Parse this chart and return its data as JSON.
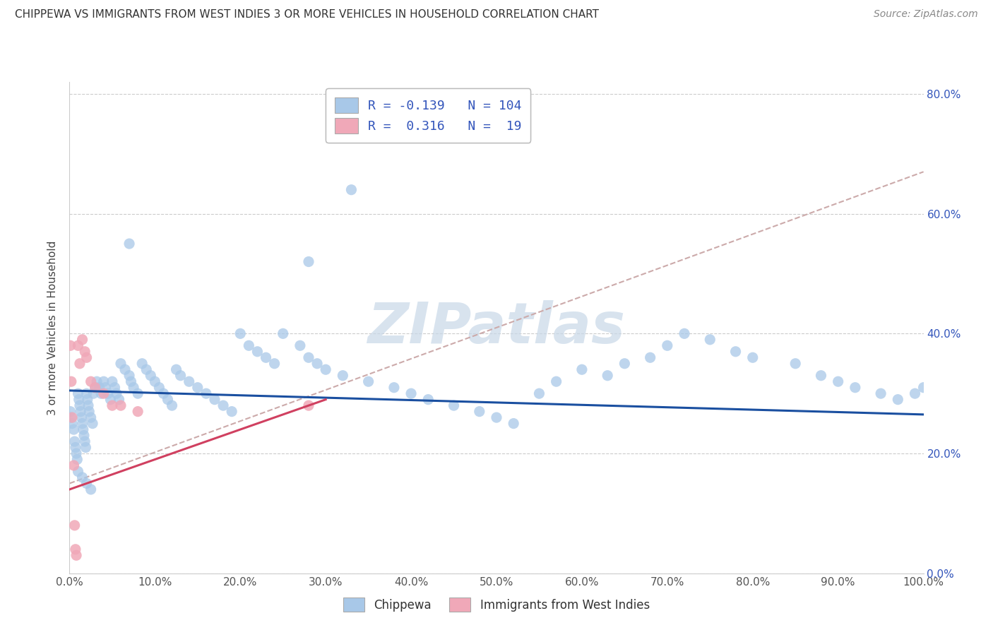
{
  "title": "CHIPPEWA VS IMMIGRANTS FROM WEST INDIES 3 OR MORE VEHICLES IN HOUSEHOLD CORRELATION CHART",
  "source": "Source: ZipAtlas.com",
  "ylabel": "3 or more Vehicles in Household",
  "chippewa_R": -0.139,
  "chippewa_N": 104,
  "west_indies_R": 0.316,
  "west_indies_N": 19,
  "chippewa_color": "#a8c8e8",
  "west_indies_color": "#f0a8b8",
  "chippewa_line_color": "#1a4fa0",
  "west_indies_line_color": "#d04060",
  "trend_line_color": "#ccaaaa",
  "grid_color": "#cccccc",
  "background_color": "#ffffff",
  "watermark": "ZIPatlas",
  "watermark_color": "#c8d8e8",
  "legend_text_color": "#3355bb",
  "legend_label_color": "#222222",
  "x_ytick_color": "#3355bb",
  "ylim": [
    0.0,
    0.82
  ],
  "xlim": [
    0.0,
    1.0
  ],
  "yticks": [
    0.0,
    0.2,
    0.4,
    0.6,
    0.8
  ],
  "xticks": [
    0.0,
    0.1,
    0.2,
    0.3,
    0.4,
    0.5,
    0.6,
    0.7,
    0.8,
    0.9,
    1.0
  ],
  "chippewa_x": [
    0.001,
    0.002,
    0.003,
    0.005,
    0.006,
    0.007,
    0.008,
    0.009,
    0.01,
    0.011,
    0.012,
    0.013,
    0.014,
    0.015,
    0.016,
    0.017,
    0.018,
    0.019,
    0.02,
    0.021,
    0.022,
    0.023,
    0.025,
    0.027,
    0.028,
    0.03,
    0.032,
    0.035,
    0.037,
    0.04,
    0.042,
    0.045,
    0.048,
    0.05,
    0.053,
    0.055,
    0.058,
    0.06,
    0.065,
    0.07,
    0.072,
    0.075,
    0.08,
    0.085,
    0.09,
    0.095,
    0.1,
    0.105,
    0.11,
    0.115,
    0.12,
    0.125,
    0.13,
    0.14,
    0.15,
    0.16,
    0.17,
    0.18,
    0.19,
    0.2,
    0.21,
    0.22,
    0.23,
    0.24,
    0.25,
    0.27,
    0.28,
    0.29,
    0.3,
    0.32,
    0.35,
    0.38,
    0.4,
    0.42,
    0.45,
    0.48,
    0.5,
    0.52,
    0.55,
    0.57,
    0.6,
    0.63,
    0.65,
    0.68,
    0.7,
    0.72,
    0.75,
    0.78,
    0.8,
    0.85,
    0.88,
    0.9,
    0.92,
    0.95,
    0.97,
    0.99,
    1.0,
    0.33,
    0.28,
    0.07,
    0.01,
    0.015,
    0.02,
    0.025
  ],
  "chippewa_y": [
    0.27,
    0.26,
    0.25,
    0.24,
    0.22,
    0.21,
    0.2,
    0.19,
    0.3,
    0.29,
    0.28,
    0.27,
    0.26,
    0.25,
    0.24,
    0.23,
    0.22,
    0.21,
    0.3,
    0.29,
    0.28,
    0.27,
    0.26,
    0.25,
    0.3,
    0.31,
    0.32,
    0.31,
    0.3,
    0.32,
    0.31,
    0.3,
    0.29,
    0.32,
    0.31,
    0.3,
    0.29,
    0.35,
    0.34,
    0.33,
    0.32,
    0.31,
    0.3,
    0.35,
    0.34,
    0.33,
    0.32,
    0.31,
    0.3,
    0.29,
    0.28,
    0.34,
    0.33,
    0.32,
    0.31,
    0.3,
    0.29,
    0.28,
    0.27,
    0.4,
    0.38,
    0.37,
    0.36,
    0.35,
    0.4,
    0.38,
    0.36,
    0.35,
    0.34,
    0.33,
    0.32,
    0.31,
    0.3,
    0.29,
    0.28,
    0.27,
    0.26,
    0.25,
    0.3,
    0.32,
    0.34,
    0.33,
    0.35,
    0.36,
    0.38,
    0.4,
    0.39,
    0.37,
    0.36,
    0.35,
    0.33,
    0.32,
    0.31,
    0.3,
    0.29,
    0.3,
    0.31,
    0.64,
    0.52,
    0.55,
    0.17,
    0.16,
    0.15,
    0.14
  ],
  "west_indies_x": [
    0.001,
    0.002,
    0.003,
    0.005,
    0.006,
    0.007,
    0.008,
    0.01,
    0.012,
    0.015,
    0.018,
    0.02,
    0.025,
    0.03,
    0.04,
    0.05,
    0.06,
    0.08,
    0.28
  ],
  "west_indies_y": [
    0.38,
    0.32,
    0.26,
    0.18,
    0.08,
    0.04,
    0.03,
    0.38,
    0.35,
    0.39,
    0.37,
    0.36,
    0.32,
    0.31,
    0.3,
    0.28,
    0.28,
    0.27,
    0.28
  ],
  "chip_line_x0": 0.0,
  "chip_line_y0": 0.305,
  "chip_line_x1": 1.0,
  "chip_line_y1": 0.265,
  "wi_line_x0": 0.0,
  "wi_line_y0": 0.14,
  "wi_line_x1": 0.3,
  "wi_line_y1": 0.29,
  "trend_x0": 0.0,
  "trend_y0": 0.15,
  "trend_x1": 1.0,
  "trend_y1": 0.67
}
